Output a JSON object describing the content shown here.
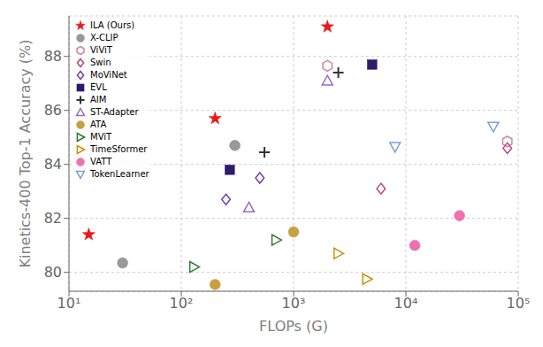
{
  "chart_data": {
    "type": "scatter",
    "xlabel": "FLOPs (G)",
    "ylabel": "Kinetics-400 Top-1 Accuracy (%)",
    "log": "x",
    "grid": true,
    "legend": "upper left",
    "xlim": [
      10,
      100000
    ],
    "xticks": [
      {
        "value": 10,
        "label": "10¹"
      },
      {
        "value": 100,
        "label": "10²"
      },
      {
        "value": 1000,
        "label": "10³"
      },
      {
        "value": 10000,
        "label": "10⁴"
      },
      {
        "value": 100000,
        "label": "10⁵"
      }
    ],
    "ylim": [
      79.3,
      89.5
    ],
    "yticks": [
      80,
      82,
      84,
      86,
      88
    ],
    "series": [
      {
        "name": "ILA (Ours)",
        "color": "#e8191c",
        "marker": "star",
        "x": [
          15,
          200,
          2000
        ],
        "values": [
          81.4,
          85.7,
          89.1
        ]
      },
      {
        "name": "X-CLIP",
        "color": "#999999",
        "marker": "circle",
        "x": [
          30,
          300
        ],
        "values": [
          80.35,
          84.7
        ]
      },
      {
        "name": "ViViT",
        "color": "#cc8899",
        "marker": "hexagon-open",
        "x": [
          2000,
          80000
        ],
        "values": [
          87.65,
          84.85
        ]
      },
      {
        "name": "Swin",
        "color": "#c0417a",
        "marker": "diamond-open",
        "x": [
          6000,
          80000
        ],
        "values": [
          83.1,
          84.6
        ]
      },
      {
        "name": "MoViNet",
        "color": "#7b3f9e",
        "marker": "diamond-open",
        "x": [
          250,
          500
        ],
        "values": [
          82.7,
          83.5
        ]
      },
      {
        "name": "EVL",
        "color": "#2d1b6b",
        "marker": "square",
        "x": [
          270,
          5000
        ],
        "values": [
          83.8,
          87.7
        ]
      },
      {
        "name": "AIM",
        "color": "#333333",
        "marker": "plus",
        "x": [
          550,
          2500
        ],
        "values": [
          84.45,
          87.4
        ]
      },
      {
        "name": "ST-Adapter",
        "color": "#9b6bbf",
        "marker": "triangle-up-open",
        "x": [
          400,
          2000
        ],
        "values": [
          82.4,
          87.1
        ]
      },
      {
        "name": "ATA",
        "color": "#c8a040",
        "marker": "circle",
        "x": [
          200,
          1000
        ],
        "values": [
          79.55,
          81.5
        ]
      },
      {
        "name": "MViT",
        "color": "#2a7a2a",
        "marker": "triangle-right-open",
        "x": [
          130,
          700
        ],
        "values": [
          80.2,
          81.2
        ]
      },
      {
        "name": "TimeSformer",
        "color": "#c8910a",
        "marker": "triangle-right-open",
        "x": [
          2500,
          4500
        ],
        "values": [
          80.7,
          79.75
        ]
      },
      {
        "name": "VATT",
        "color": "#f070b0",
        "marker": "circle",
        "x": [
          12000,
          30000
        ],
        "values": [
          81.0,
          82.1
        ]
      },
      {
        "name": "TokenLearner",
        "color": "#7a9fd4",
        "marker": "triangle-down-open",
        "x": [
          8000,
          60000
        ],
        "values": [
          84.65,
          85.4
        ]
      }
    ]
  }
}
